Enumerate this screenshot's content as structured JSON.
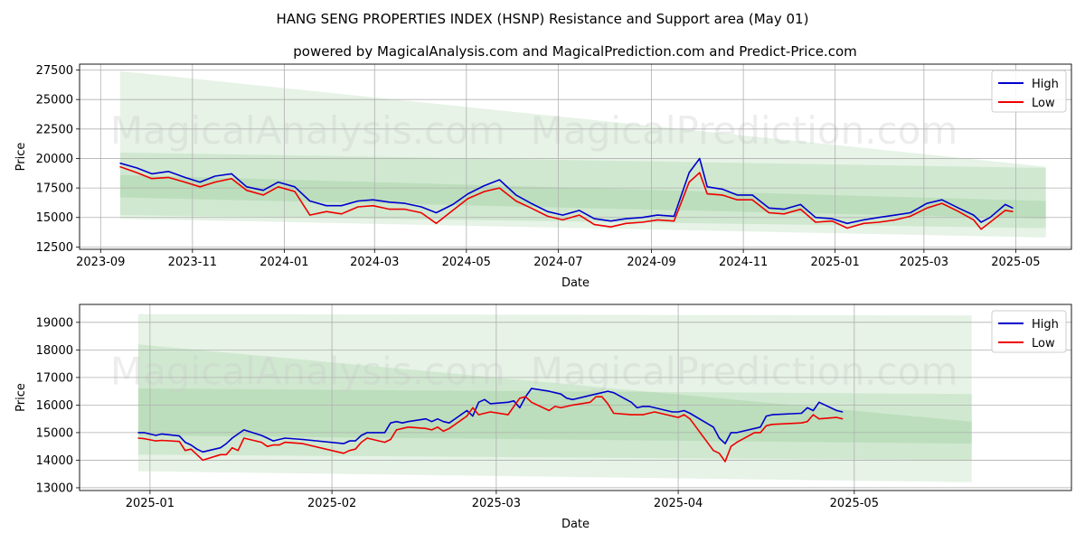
{
  "title": "HANG SENG PROPERTIES INDEX (HSNP) Resistance and Support area (May 01)",
  "subtitle": "powered by MagicalAnalysis.com and MagicalPrediction.com and Predict-Price.com",
  "watermarks": [
    "MagicalAnalysis.com",
    "MagicalPrediction.com"
  ],
  "colors": {
    "high": "#0000cc",
    "low": "#ee0000",
    "band": "#2e9a2e",
    "grid": "#b0b0b0"
  },
  "chart_data": [
    {
      "type": "line",
      "xlabel": "Date",
      "ylabel": "Price",
      "xlim": [
        "2023-08-18",
        "2025-06-07"
      ],
      "ylim": [
        12300,
        28000
      ],
      "xticks": [
        "2023-09",
        "2023-11",
        "2024-01",
        "2024-03",
        "2024-05",
        "2024-07",
        "2024-09",
        "2024-11",
        "2025-01",
        "2025-03",
        "2025-05"
      ],
      "yticks": [
        12500,
        15000,
        17500,
        20000,
        22500,
        25000,
        27500
      ],
      "grid": true,
      "legend": "top-right",
      "bands": [
        {
          "x": [
            "2023-09-14",
            "2025-05-21"
          ],
          "upper": [
            27400,
            19300
          ],
          "lower": [
            14900,
            13300
          ]
        },
        {
          "x": [
            "2023-09-14",
            "2025-05-21"
          ],
          "upper": [
            20500,
            19200
          ],
          "lower": [
            15200,
            14100
          ]
        },
        {
          "x": [
            "2023-09-14",
            "2025-05-21"
          ],
          "upper": [
            18600,
            16400
          ],
          "lower": [
            16700,
            14900
          ]
        }
      ],
      "series": [
        {
          "name": "High",
          "x": [
            "2023-09-14",
            "2023-09-25",
            "2023-10-05",
            "2023-10-16",
            "2023-10-27",
            "2023-11-06",
            "2023-11-16",
            "2023-11-27",
            "2023-12-07",
            "2023-12-18",
            "2023-12-28",
            "2024-01-08",
            "2024-01-18",
            "2024-01-29",
            "2024-02-08",
            "2024-02-19",
            "2024-02-29",
            "2024-03-11",
            "2024-03-21",
            "2024-04-01",
            "2024-04-11",
            "2024-04-22",
            "2024-05-02",
            "2024-05-13",
            "2024-05-23",
            "2024-06-03",
            "2024-06-13",
            "2024-06-24",
            "2024-07-04",
            "2024-07-15",
            "2024-07-25",
            "2024-08-05",
            "2024-08-15",
            "2024-08-26",
            "2024-09-05",
            "2024-09-16",
            "2024-09-26",
            "2024-10-03",
            "2024-10-08",
            "2024-10-18",
            "2024-10-28",
            "2024-11-07",
            "2024-11-18",
            "2024-11-28",
            "2024-12-09",
            "2024-12-19",
            "2024-12-30",
            "2025-01-09",
            "2025-01-20",
            "2025-01-30",
            "2025-02-10",
            "2025-02-20",
            "2025-03-03",
            "2025-03-13",
            "2025-03-24",
            "2025-04-03",
            "2025-04-08",
            "2025-04-14",
            "2025-04-24",
            "2025-04-29"
          ],
          "values": [
            19600,
            19200,
            18700,
            18900,
            18400,
            18000,
            18500,
            18700,
            17600,
            17300,
            18000,
            17600,
            16400,
            16000,
            16000,
            16400,
            16500,
            16300,
            16200,
            15900,
            15400,
            16100,
            17000,
            17700,
            18200,
            16900,
            16200,
            15500,
            15200,
            15600,
            14900,
            14700,
            14900,
            15000,
            15200,
            15100,
            18800,
            20000,
            17600,
            17400,
            16900,
            16900,
            15800,
            15700,
            16100,
            15000,
            14900,
            14500,
            14800,
            15000,
            15200,
            15400,
            16200,
            16500,
            15800,
            15200,
            14600,
            15000,
            16100,
            15800
          ]
        },
        {
          "name": "Low",
          "x": [
            "2023-09-14",
            "2023-09-25",
            "2023-10-05",
            "2023-10-16",
            "2023-10-27",
            "2023-11-06",
            "2023-11-16",
            "2023-11-27",
            "2023-12-07",
            "2023-12-18",
            "2023-12-28",
            "2024-01-08",
            "2024-01-18",
            "2024-01-29",
            "2024-02-08",
            "2024-02-19",
            "2024-02-29",
            "2024-03-11",
            "2024-03-21",
            "2024-04-01",
            "2024-04-11",
            "2024-04-22",
            "2024-05-02",
            "2024-05-13",
            "2024-05-23",
            "2024-06-03",
            "2024-06-13",
            "2024-06-24",
            "2024-07-04",
            "2024-07-15",
            "2024-07-25",
            "2024-08-05",
            "2024-08-15",
            "2024-08-26",
            "2024-09-05",
            "2024-09-16",
            "2024-09-26",
            "2024-10-03",
            "2024-10-08",
            "2024-10-18",
            "2024-10-28",
            "2024-11-07",
            "2024-11-18",
            "2024-11-28",
            "2024-12-09",
            "2024-12-19",
            "2024-12-30",
            "2025-01-09",
            "2025-01-20",
            "2025-01-30",
            "2025-02-10",
            "2025-02-20",
            "2025-03-03",
            "2025-03-13",
            "2025-03-24",
            "2025-04-03",
            "2025-04-08",
            "2025-04-14",
            "2025-04-24",
            "2025-04-29"
          ],
          "values": [
            19300,
            18800,
            18300,
            18400,
            18000,
            17600,
            18000,
            18300,
            17300,
            16900,
            17600,
            17200,
            15200,
            15500,
            15300,
            15900,
            16000,
            15700,
            15700,
            15400,
            14500,
            15600,
            16600,
            17200,
            17500,
            16400,
            15800,
            15100,
            14800,
            15200,
            14400,
            14200,
            14500,
            14600,
            14800,
            14700,
            18000,
            18800,
            17000,
            16900,
            16500,
            16500,
            15400,
            15300,
            15700,
            14600,
            14700,
            14100,
            14500,
            14600,
            14800,
            15100,
            15800,
            16200,
            15500,
            14800,
            14000,
            14600,
            15600,
            15500
          ]
        }
      ]
    },
    {
      "type": "line",
      "xlabel": "Date",
      "ylabel": "Price",
      "xlim": [
        "2024-12-20",
        "2025-06-07"
      ],
      "ylim": [
        12900,
        19650
      ],
      "xticks": [
        "2025-01",
        "2025-02",
        "2025-03",
        "2025-04",
        "2025-05"
      ],
      "yticks": [
        13000,
        14000,
        15000,
        16000,
        17000,
        18000,
        19000
      ],
      "grid": true,
      "legend": "top-right",
      "bands": [
        {
          "x": [
            "2024-12-30",
            "2025-05-21"
          ],
          "upper": [
            19300,
            19250
          ],
          "lower": [
            13600,
            13200
          ]
        },
        {
          "x": [
            "2024-12-30",
            "2025-05-21"
          ],
          "upper": [
            18200,
            15400
          ],
          "lower": [
            14200,
            14000
          ]
        },
        {
          "x": [
            "2024-12-30",
            "2025-05-21"
          ],
          "upper": [
            16600,
            16400
          ],
          "lower": [
            14900,
            14600
          ]
        }
      ],
      "series": [
        {
          "name": "High",
          "x": [
            "2024-12-30",
            "2024-12-31",
            "2025-01-02",
            "2025-01-03",
            "2025-01-06",
            "2025-01-07",
            "2025-01-08",
            "2025-01-09",
            "2025-01-10",
            "2025-01-13",
            "2025-01-14",
            "2025-01-15",
            "2025-01-16",
            "2025-01-17",
            "2025-01-20",
            "2025-01-21",
            "2025-01-22",
            "2025-01-23",
            "2025-01-24",
            "2025-01-27",
            "2025-02-03",
            "2025-02-04",
            "2025-02-05",
            "2025-02-06",
            "2025-02-07",
            "2025-02-10",
            "2025-02-11",
            "2025-02-12",
            "2025-02-13",
            "2025-02-14",
            "2025-02-17",
            "2025-02-18",
            "2025-02-19",
            "2025-02-20",
            "2025-02-21",
            "2025-02-24",
            "2025-02-25",
            "2025-02-26",
            "2025-02-27",
            "2025-02-28",
            "2025-03-03",
            "2025-03-04",
            "2025-03-05",
            "2025-03-06",
            "2025-03-07",
            "2025-03-10",
            "2025-03-11",
            "2025-03-12",
            "2025-03-13",
            "2025-03-14",
            "2025-03-17",
            "2025-03-18",
            "2025-03-19",
            "2025-03-20",
            "2025-03-21",
            "2025-03-24",
            "2025-03-25",
            "2025-03-26",
            "2025-03-27",
            "2025-03-28",
            "2025-03-31",
            "2025-04-01",
            "2025-04-02",
            "2025-04-03",
            "2025-04-07",
            "2025-04-08",
            "2025-04-09",
            "2025-04-10",
            "2025-04-11",
            "2025-04-14",
            "2025-04-15",
            "2025-04-16",
            "2025-04-17",
            "2025-04-22",
            "2025-04-23",
            "2025-04-24",
            "2025-04-25",
            "2025-04-28",
            "2025-04-29"
          ],
          "values": [
            15000,
            15000,
            14900,
            14950,
            14880,
            14650,
            14550,
            14400,
            14300,
            14450,
            14600,
            14800,
            14950,
            15100,
            14900,
            14800,
            14700,
            14750,
            14800,
            14750,
            14600,
            14700,
            14700,
            14900,
            15000,
            15000,
            15350,
            15400,
            15350,
            15400,
            15500,
            15400,
            15500,
            15400,
            15350,
            15800,
            15600,
            16100,
            16200,
            16050,
            16100,
            16150,
            15900,
            16300,
            16600,
            16500,
            16450,
            16400,
            16250,
            16200,
            16350,
            16400,
            16450,
            16500,
            16450,
            16100,
            15900,
            15950,
            15950,
            15900,
            15750,
            15750,
            15800,
            15700,
            15200,
            14800,
            14600,
            15000,
            15000,
            15150,
            15200,
            15600,
            15650,
            15700,
            15900,
            15800,
            16100,
            15800,
            15750
          ]
        },
        {
          "name": "Low",
          "x": [
            "2024-12-30",
            "2024-12-31",
            "2025-01-02",
            "2025-01-03",
            "2025-01-06",
            "2025-01-07",
            "2025-01-08",
            "2025-01-09",
            "2025-01-10",
            "2025-01-13",
            "2025-01-14",
            "2025-01-15",
            "2025-01-16",
            "2025-01-17",
            "2025-01-20",
            "2025-01-21",
            "2025-01-22",
            "2025-01-23",
            "2025-01-24",
            "2025-01-27",
            "2025-02-03",
            "2025-02-04",
            "2025-02-05",
            "2025-02-06",
            "2025-02-07",
            "2025-02-10",
            "2025-02-11",
            "2025-02-12",
            "2025-02-13",
            "2025-02-14",
            "2025-02-17",
            "2025-02-18",
            "2025-02-19",
            "2025-02-20",
            "2025-02-21",
            "2025-02-24",
            "2025-02-25",
            "2025-02-26",
            "2025-02-27",
            "2025-02-28",
            "2025-03-03",
            "2025-03-04",
            "2025-03-05",
            "2025-03-06",
            "2025-03-07",
            "2025-03-10",
            "2025-03-11",
            "2025-03-12",
            "2025-03-13",
            "2025-03-14",
            "2025-03-17",
            "2025-03-18",
            "2025-03-19",
            "2025-03-20",
            "2025-03-21",
            "2025-03-24",
            "2025-03-25",
            "2025-03-26",
            "2025-03-27",
            "2025-03-28",
            "2025-03-31",
            "2025-04-01",
            "2025-04-02",
            "2025-04-03",
            "2025-04-07",
            "2025-04-08",
            "2025-04-09",
            "2025-04-10",
            "2025-04-11",
            "2025-04-14",
            "2025-04-15",
            "2025-04-16",
            "2025-04-17",
            "2025-04-22",
            "2025-04-23",
            "2025-04-24",
            "2025-04-25",
            "2025-04-28",
            "2025-04-29"
          ],
          "values": [
            14800,
            14780,
            14700,
            14720,
            14680,
            14350,
            14400,
            14200,
            14000,
            14200,
            14200,
            14450,
            14350,
            14800,
            14650,
            14500,
            14550,
            14550,
            14650,
            14600,
            14250,
            14350,
            14400,
            14650,
            14800,
            14650,
            14750,
            15100,
            15150,
            15200,
            15150,
            15100,
            15200,
            15050,
            15150,
            15600,
            15900,
            15650,
            15700,
            15750,
            15650,
            15950,
            16250,
            16300,
            16100,
            15800,
            15950,
            15900,
            15950,
            16000,
            16100,
            16300,
            16300,
            16050,
            15700,
            15650,
            15650,
            15650,
            15700,
            15750,
            15600,
            15550,
            15650,
            15500,
            14350,
            14250,
            13950,
            14500,
            14650,
            15000,
            15000,
            15250,
            15300,
            15350,
            15400,
            15650,
            15500,
            15550,
            15500
          ]
        }
      ]
    }
  ]
}
